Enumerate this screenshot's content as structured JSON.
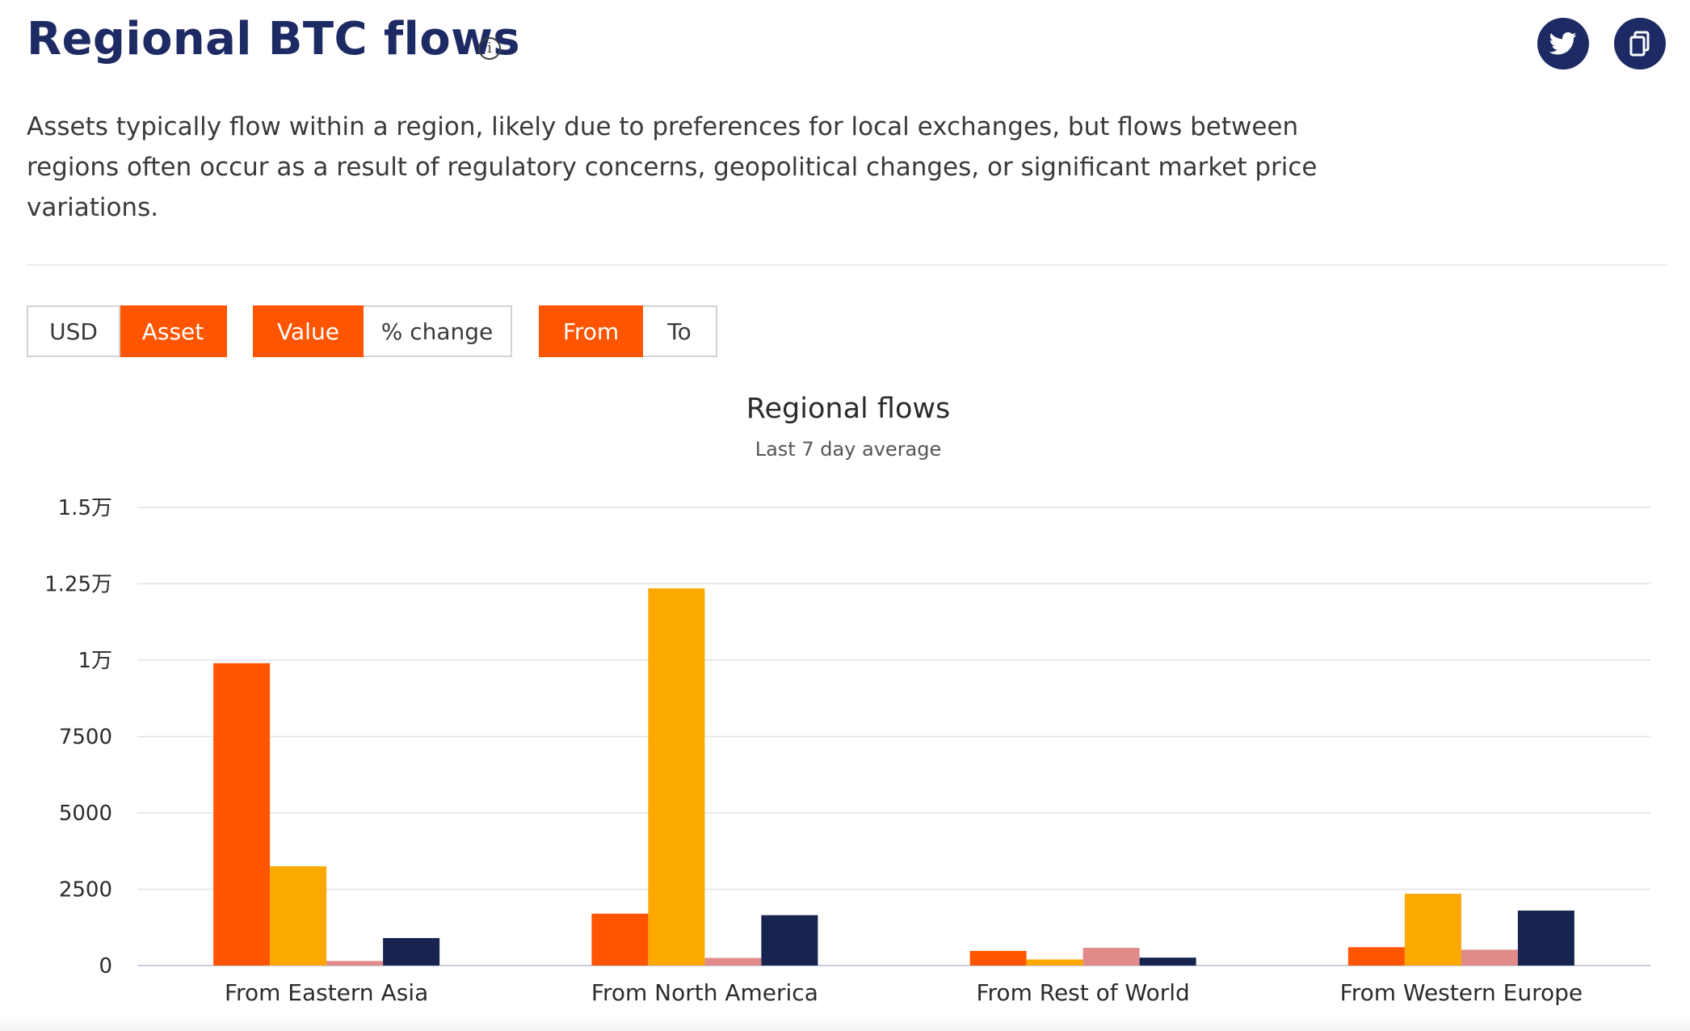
{
  "header": {
    "title": "Regional BTC flows",
    "info_icon": "info-icon",
    "twitter_icon": "twitter-icon",
    "copy_icon": "copy-icon"
  },
  "description": "Assets typically flow within a region, likely due to preferences for local exchanges, but flows between regions often occur as a result of regulatory concerns, geopolitical changes, or significant market price variations.",
  "controls": {
    "unit": {
      "options": [
        "USD",
        "Asset"
      ],
      "selected": "Asset"
    },
    "metric": {
      "options": [
        "Value",
        "% change"
      ],
      "selected": "Value"
    },
    "direction": {
      "options": [
        "From",
        "To"
      ],
      "selected": "From"
    }
  },
  "chart_data": {
    "type": "bar",
    "title": "Regional flows",
    "subtitle": "Last 7 day average",
    "categories": [
      "From Eastern Asia",
      "From North America",
      "From Rest of World",
      "From Western Europe"
    ],
    "series": [
      {
        "color": "#ff5500",
        "values": [
          9900,
          1700,
          480,
          600
        ]
      },
      {
        "color": "#fba800",
        "values": [
          3250,
          12350,
          200,
          2350
        ]
      },
      {
        "color": "#e08a8a",
        "values": [
          150,
          250,
          580,
          520
        ]
      },
      {
        "color": "#17244f",
        "values": [
          900,
          1650,
          260,
          1800
        ]
      }
    ],
    "y_ticks": [
      "0",
      "2500",
      "5000",
      "7500",
      "1万",
      "1.25万",
      "1.5万"
    ],
    "ylim": [
      0,
      15000
    ],
    "grid": true,
    "legend": "none"
  }
}
